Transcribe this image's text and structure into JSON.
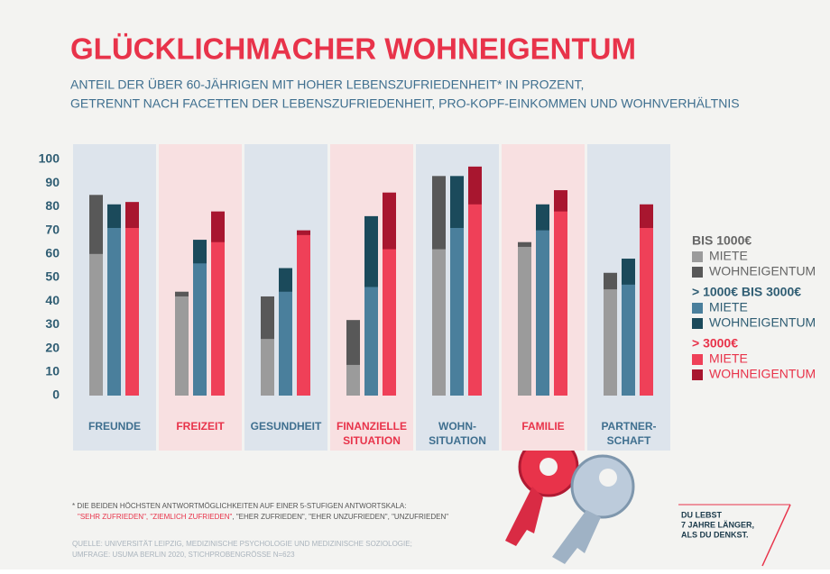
{
  "chart_data": {
    "type": "overlap-bar",
    "title": "GLÜCKLICHMACHER WOHNEIGENTUM",
    "subtitle": [
      "ANTEIL DER ÜBER 60-JÄHRIGEN MIT HOHER LEBENSZUFRIEDENHEIT* IN PROZENT,",
      "GETRENNT NACH FACETTEN DER LEBENSZUFRIEDENHEIT, PRO-KOPF-EINKOMMEN UND WOHNVERHÄLTNIS"
    ],
    "categories": [
      [
        "FREUNDE"
      ],
      [
        "FREIZEIT"
      ],
      [
        "GESUNDHEIT"
      ],
      [
        "FINANZIELLE",
        "SITUATION"
      ],
      [
        "WOHN-",
        "SITUATION"
      ],
      [
        "FAMILIE"
      ],
      [
        "PARTNER-",
        "SCHAFT"
      ]
    ],
    "category_colors": [
      "#3f6f8f",
      "#e8334a"
    ],
    "panel_colors": [
      "#dde4ec",
      "#f8e0e1"
    ],
    "groups": [
      {
        "name": "BIS 1000€",
        "color": "#666666",
        "series": [
          {
            "name": "MIETE",
            "color": "#9b9b9b",
            "values": [
              60,
              42,
              24,
              13,
              62,
              63,
              45
            ]
          },
          {
            "name": "WOHNEIGENTUM",
            "color": "#585858",
            "values": [
              85,
              44,
              42,
              32,
              93,
              65,
              52
            ]
          }
        ]
      },
      {
        "name": "> 1000€ BIS 3000€",
        "color": "#2f5d73",
        "series": [
          {
            "name": "MIETE",
            "color": "#4a7f9c",
            "values": [
              71,
              56,
              44,
              46,
              71,
              70,
              47
            ]
          },
          {
            "name": "WOHNEIGENTUM",
            "color": "#1b4a5b",
            "values": [
              81,
              66,
              54,
              76,
              93,
              81,
              58
            ]
          }
        ]
      },
      {
        "name": "> 3000€",
        "color": "#e8334a",
        "series": [
          {
            "name": "MIETE",
            "color": "#ef4058",
            "values": [
              71,
              65,
              68,
              62,
              81,
              78,
              71
            ]
          },
          {
            "name": "WOHNEIGENTUM",
            "color": "#a8162f",
            "values": [
              82,
              78,
              70,
              86,
              97,
              87,
              81
            ]
          }
        ]
      }
    ],
    "ylim": [
      0,
      100
    ],
    "yticks": [
      0,
      10,
      20,
      30,
      40,
      50,
      60,
      70,
      80,
      90,
      100
    ],
    "grid": false,
    "footnote": [
      "* DIE BEIDEN HÖCHSTEN ANTWORTMÖGLICHKEITEN AUF EINER 5-STUFIGEN ANTWORTSKALA:",
      "\"SEHR ZUFRIEDEN\", \"ZIEMLICH ZUFRIEDEN\"",
      ", \"EHER ZUFRIEDEN\", \"EHER UNZUFRIEDEN\", \"UNZUFRIEDEN\""
    ],
    "source": [
      "QUELLE: UNIVERSITÄT LEIPZIG, MEDIZINISCHE PSYCHOLOGIE UND MEDIZINISCHE SOZIOLOGIE;",
      "UMFRAGE: USUMA BERLIN 2020, STICHPROBENGRÖSSE N=623"
    ],
    "slogan": [
      "DU LEBST",
      "7 JAHRE LÄNGER,",
      "ALS DU DENKST."
    ]
  }
}
